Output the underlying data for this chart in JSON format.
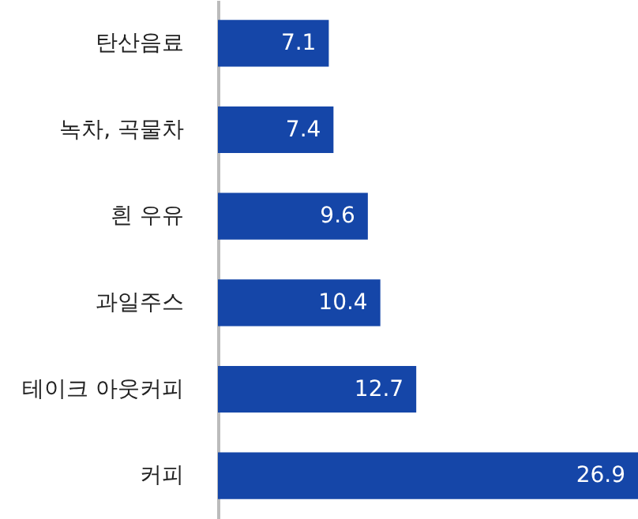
{
  "chart_data": {
    "type": "bar",
    "orientation": "horizontal",
    "categories": [
      "탄산음료",
      "녹차, 곡물차",
      "흰 우유",
      "과일주스",
      "테이크 아웃커피",
      "커피"
    ],
    "values": [
      7.1,
      7.4,
      9.6,
      10.4,
      12.7,
      26.9
    ],
    "color": "#1546a8",
    "data_labels": true,
    "tick_labels": "y"
  }
}
